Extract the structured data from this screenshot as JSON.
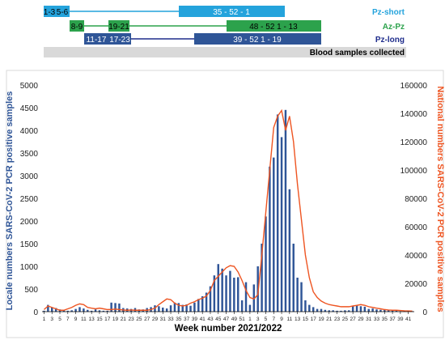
{
  "colors": {
    "blue": "#2f5597",
    "blue_light": "#24a3dc",
    "green": "#2ca24c",
    "navy": "#1f2d8c",
    "orange": "#ee5522",
    "grey": "#d9d9d9",
    "axis": "#000000"
  },
  "timeline": {
    "rows": [
      {
        "name": "Pz-short",
        "color": "#24a3dc",
        "boxes": [
          "1-3",
          "5-6",
          "35 - 52 - 1"
        ]
      },
      {
        "name": "Az-Pz",
        "color": "#2ca24c",
        "boxes": [
          "8-9",
          "19-21",
          "48 - 52  1 - 13"
        ]
      },
      {
        "name": "Pz-long",
        "color": "#1f2d8c",
        "boxes": [
          "11-17",
          "17-23",
          "39 - 52  1 - 19"
        ]
      }
    ],
    "bar_label": "Blood samples collected"
  },
  "chart_data": {
    "type": "bar",
    "xlabel": "Week number 2021/2022",
    "ylabel_left": "Locale numbers SARS-CoV-2 PCR positive samples",
    "ylabel_right": "National numbers SARS-CoV-2 PCR positive samples",
    "ylim_left": [
      0,
      5000
    ],
    "ylim_right": [
      0,
      160000
    ],
    "yticks_left": [
      "0",
      "500",
      "1000",
      "1500",
      "2000",
      "2500",
      "3000",
      "3500",
      "4000",
      "4500",
      "5000"
    ],
    "yticks_right": [
      "0",
      "20000",
      "40000",
      "60000",
      "80000",
      "100000",
      "120000",
      "140000",
      "160000"
    ],
    "x_tick_labels": [
      "1",
      "3",
      "5",
      "7",
      "9",
      "11",
      "13",
      "15",
      "17",
      "19",
      "21",
      "23",
      "25",
      "27",
      "29",
      "31",
      "33",
      "35",
      "37",
      "39",
      "41",
      "43",
      "45",
      "47",
      "49",
      "51",
      "1",
      "3",
      "5",
      "7",
      "9",
      "11",
      "13",
      "15",
      "17",
      "19",
      "21",
      "23",
      "25",
      "27",
      "29",
      "31",
      "33",
      "35",
      "37",
      "39",
      "41"
    ],
    "grid": false,
    "series": [
      {
        "kind": "bar",
        "axis": "left",
        "values": [
          20,
          150,
          90,
          80,
          50,
          30,
          20,
          30,
          60,
          100,
          70,
          40,
          20,
          50,
          30,
          20,
          20,
          200,
          190,
          180,
          80,
          70,
          60,
          80,
          50,
          50,
          80,
          100,
          140,
          120,
          90,
          70,
          140,
          200,
          190,
          150,
          160,
          130,
          200,
          280,
          340,
          420,
          560,
          800,
          1050,
          950,
          800,
          900,
          750,
          760,
          250,
          650,
          150,
          600,
          1000,
          1500,
          2100,
          3200,
          3400,
          4350,
          3850,
          4450,
          2700,
          1500,
          750,
          650,
          250,
          150,
          100,
          60,
          60,
          40,
          30,
          30,
          20,
          20,
          30,
          30,
          120,
          140,
          120,
          110,
          60,
          70,
          50,
          40,
          40,
          40,
          30,
          20,
          10,
          10,
          10,
          10
        ]
      },
      {
        "kind": "line",
        "axis": "right",
        "values": [
          1500,
          4000,
          3000,
          2000,
          1000,
          1000,
          2000,
          3000,
          4500,
          5500,
          5000,
          3000,
          2500,
          2000,
          2500,
          2000,
          1500,
          1500,
          1800,
          1500,
          1200,
          1000,
          1200,
          1000,
          1000,
          1000,
          1000,
          1500,
          2500,
          5000,
          7000,
          9000,
          8500,
          6000,
          4500,
          4000,
          4500,
          6000,
          7000,
          8500,
          9500,
          11000,
          15000,
          22000,
          25000,
          28000,
          31000,
          32500,
          32000,
          28000,
          22000,
          15000,
          10000,
          9000,
          12000,
          40000,
          70000,
          100000,
          130000,
          138000,
          142000,
          128000,
          138000,
          120000,
          90000,
          65000,
          40000,
          24000,
          14000,
          10000,
          7500,
          6000,
          5000,
          4500,
          4000,
          3500,
          3500,
          3500,
          4000,
          4500,
          5000,
          4500,
          3500,
          3000,
          2500,
          2000,
          1500,
          1200,
          1000,
          1000,
          800,
          600,
          500,
          400
        ]
      }
    ]
  }
}
